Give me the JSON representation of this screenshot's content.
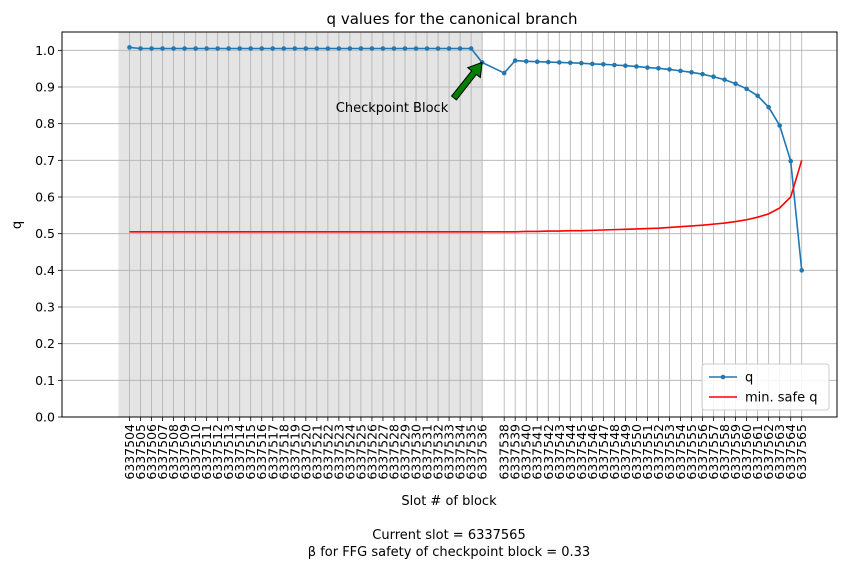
{
  "chart_data": {
    "type": "line",
    "title": "q values for the canonical branch",
    "xlabel": "Slot # of block",
    "ylabel": "q",
    "ylim": [
      0.0,
      1.05
    ],
    "yticks": [
      0.0,
      0.1,
      0.2,
      0.3,
      0.4,
      0.5,
      0.6,
      0.7,
      0.8,
      0.9,
      1.0
    ],
    "grid": true,
    "legend_position": "bottom-right",
    "x": [
      6337504,
      6337505,
      6337506,
      6337507,
      6337508,
      6337509,
      6337510,
      6337511,
      6337512,
      6337513,
      6337514,
      6337515,
      6337516,
      6337517,
      6337518,
      6337519,
      6337520,
      6337521,
      6337522,
      6337523,
      6337524,
      6337525,
      6337526,
      6337527,
      6337528,
      6337529,
      6337530,
      6337531,
      6337532,
      6337533,
      6337534,
      6337535,
      6337536,
      6337538,
      6337539,
      6337540,
      6337541,
      6337542,
      6337543,
      6337544,
      6337545,
      6337546,
      6337547,
      6337548,
      6337549,
      6337550,
      6337551,
      6337552,
      6337553,
      6337554,
      6337555,
      6337556,
      6337557,
      6337558,
      6337559,
      6337560,
      6337561,
      6337562,
      6337563,
      6337564,
      6337565
    ],
    "series": [
      {
        "name": "q",
        "color": "#1f77b4",
        "marker": "circle",
        "values": [
          1.008,
          1.005,
          1.005,
          1.005,
          1.005,
          1.005,
          1.005,
          1.005,
          1.005,
          1.005,
          1.005,
          1.005,
          1.005,
          1.005,
          1.005,
          1.005,
          1.005,
          1.005,
          1.005,
          1.005,
          1.005,
          1.005,
          1.005,
          1.005,
          1.005,
          1.005,
          1.005,
          1.005,
          1.005,
          1.005,
          1.005,
          1.005,
          0.967,
          0.938,
          0.972,
          0.97,
          0.969,
          0.968,
          0.967,
          0.966,
          0.965,
          0.963,
          0.962,
          0.96,
          0.958,
          0.956,
          0.953,
          0.951,
          0.948,
          0.944,
          0.94,
          0.935,
          0.928,
          0.92,
          0.909,
          0.895,
          0.876,
          0.845,
          0.795,
          0.698,
          0.4
        ]
      },
      {
        "name": "min. safe q",
        "color": "#ff0000",
        "marker": "none",
        "values": [
          0.505,
          0.505,
          0.505,
          0.505,
          0.505,
          0.505,
          0.505,
          0.505,
          0.505,
          0.505,
          0.505,
          0.505,
          0.505,
          0.505,
          0.505,
          0.505,
          0.505,
          0.505,
          0.505,
          0.505,
          0.505,
          0.505,
          0.505,
          0.505,
          0.505,
          0.505,
          0.505,
          0.505,
          0.505,
          0.505,
          0.505,
          0.505,
          0.505,
          0.505,
          0.505,
          0.506,
          0.506,
          0.507,
          0.507,
          0.508,
          0.508,
          0.509,
          0.51,
          0.511,
          0.512,
          0.513,
          0.514,
          0.515,
          0.517,
          0.519,
          0.521,
          0.523,
          0.526,
          0.529,
          0.533,
          0.538,
          0.545,
          0.554,
          0.57,
          0.6,
          0.7
        ]
      }
    ],
    "shaded_region": {
      "x_from": 6337503,
      "x_to": 6337536,
      "color": "#e4e4e4"
    },
    "annotation": {
      "text": "Checkpoint Block",
      "target_x": 6337536,
      "target_y": 0.967,
      "arrow_color": "#008000"
    },
    "footer_lines": [
      "Current slot = 6337565",
      "β for FFG safety of checkpoint block = 0.33"
    ]
  }
}
